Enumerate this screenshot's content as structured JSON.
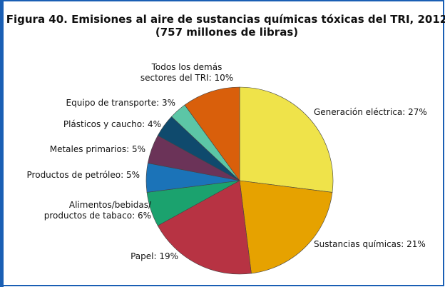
{
  "chart_data": {
    "type": "pie",
    "title": "Figura 40. Emisiones al aire de sustancias químicas tóxicas del TRI, 2012",
    "subtitle": "(757 millones de libras)",
    "categories": [
      "Generación eléctrica: 27%",
      "Sustancias químicas: 21%",
      "Papel: 19%",
      "Alimentos/bebidas/\nproductos de tabaco: 6%",
      "Productos de petróleo: 5%",
      "Metales primarios: 5%",
      "Plásticos y caucho: 4%",
      "Equipo de transporte: 3%",
      "Todos los demás\nsectores del TRI: 10%"
    ],
    "values": [
      27,
      21,
      19,
      6,
      5,
      5,
      4,
      3,
      10
    ],
    "colors": [
      "#efe34a",
      "#e6a200",
      "#b73343",
      "#1ba26e",
      "#1b73b8",
      "#6b3358",
      "#0f4a6d",
      "#5cc6a6",
      "#d95f0b"
    ]
  }
}
